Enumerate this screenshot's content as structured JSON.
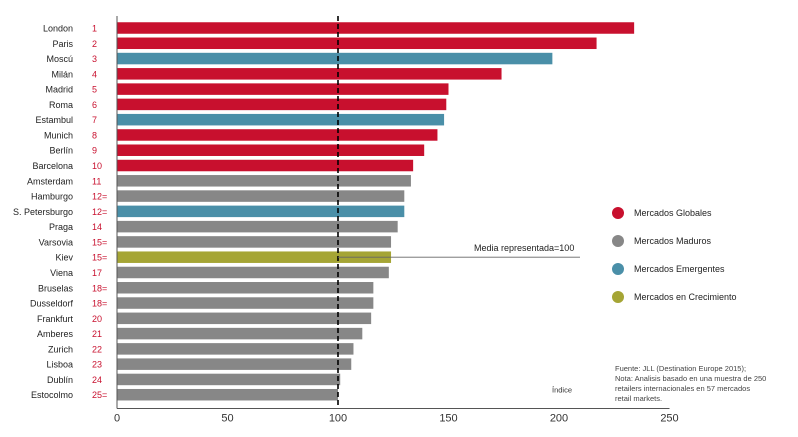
{
  "chart_data": {
    "type": "bar",
    "orientation": "horizontal",
    "categories": [
      "London",
      "Paris",
      "Moscú",
      "Milán",
      "Madrid",
      "Roma",
      "Estambul",
      "Munich",
      "Berlín",
      "Barcelona",
      "Amsterdam",
      "Hamburgo",
      "S. Petersburgo",
      "Praga",
      "Varsovia",
      "Kiev",
      "Viena",
      "Bruselas",
      "Dusseldorf",
      "Frankfurt",
      "Amberes",
      "Zurich",
      "Lisboa",
      "Dublín",
      "Estocolmo"
    ],
    "ranks": [
      "1",
      "2",
      "3",
      "4",
      "5",
      "6",
      "7",
      "8",
      "9",
      "10",
      "11",
      "12=",
      "12=",
      "14",
      "15=",
      "15=",
      "17",
      "18=",
      "18=",
      "20",
      "21",
      "22",
      "23",
      "24",
      "25="
    ],
    "values": [
      234,
      217,
      197,
      174,
      150,
      149,
      148,
      145,
      139,
      134,
      133,
      130,
      130,
      127,
      124,
      124,
      123,
      116,
      116,
      115,
      111,
      107,
      106,
      101,
      100
    ],
    "groups": [
      "global",
      "global",
      "emerging",
      "global",
      "global",
      "global",
      "emerging",
      "global",
      "global",
      "global",
      "mature",
      "mature",
      "emerging",
      "mature",
      "mature",
      "growth",
      "mature",
      "mature",
      "mature",
      "mature",
      "mature",
      "mature",
      "mature",
      "mature",
      "mature"
    ],
    "group_colors": {
      "global": "#c8102e",
      "mature": "#878787",
      "emerging": "#4a8fa8",
      "growth": "#a5a535"
    },
    "xlim": [
      0,
      250
    ],
    "xticks": [
      0,
      50,
      100,
      150,
      200,
      250
    ],
    "xlabel": "Índice",
    "reference_line": {
      "value": 100,
      "label": "Media representada=100"
    },
    "legend": [
      {
        "key": "global",
        "label": "Mercados Globales"
      },
      {
        "key": "mature",
        "label": "Mercados Maduros"
      },
      {
        "key": "emerging",
        "label": "Mercados Emergentes"
      },
      {
        "key": "growth",
        "label": "Mercados en Crecimiento"
      }
    ],
    "legend_position": "right",
    "grid": false,
    "source_lines": [
      "Fuente: JLL (Destination Europe 2015);",
      "Nota: Analisis basado en una muestra de 250",
      "retailers internacionales en 57 mercados",
      "retail markets."
    ]
  }
}
